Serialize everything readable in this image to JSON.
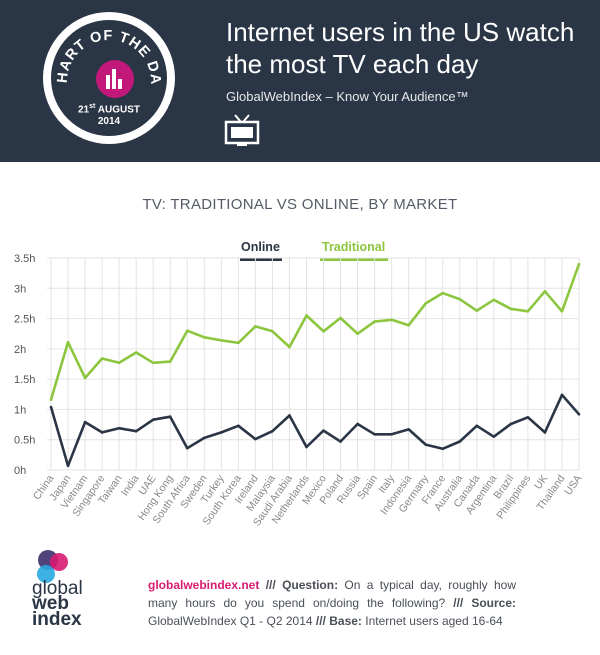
{
  "header": {
    "badge_top": "CHART OF THE DAY",
    "badge_date_day": "21",
    "badge_date_suffix": "st",
    "badge_date_month": "AUGUST",
    "badge_date_year": "2014",
    "title": "Internet users in the US watch the most TV each day",
    "subtitle": "GlobalWebIndex – Know Your Audience™",
    "icon": "tv-icon"
  },
  "colors": {
    "header_bg": "#2a3545",
    "online": "#2a3545",
    "traditional": "#8cc63f",
    "accent": "#d81b72"
  },
  "chart_data": {
    "type": "line",
    "title": "TV: TRADITIONAL VS ONLINE, BY MARKET",
    "legend_placement": "top-center",
    "grid": true,
    "ylim": [
      0,
      3.5
    ],
    "yticks": [
      "0h",
      "0.5h",
      "1h",
      "1.5h",
      "2h",
      "2.5h",
      "3h",
      "3.5h"
    ],
    "categories": [
      "China",
      "Japan",
      "Vietnam",
      "Singapore",
      "Taiwan",
      "India",
      "UAE",
      "Hong Kong",
      "South Africa",
      "Sweden",
      "Turkey",
      "South Korea",
      "Ireland",
      "Malaysia",
      "Saudi Arabia",
      "Netherlands",
      "Mexico",
      "Poland",
      "Russia",
      "Spain",
      "Italy",
      "Indonesia",
      "Germany",
      "France",
      "Australia",
      "Canada",
      "Argentina",
      "Brazil",
      "Philippines",
      "UK",
      "Thailand",
      "USA"
    ],
    "series": [
      {
        "name": "Online",
        "values": [
          1.04,
          0.07,
          0.79,
          0.62,
          0.69,
          0.64,
          0.83,
          0.88,
          0.36,
          0.53,
          0.62,
          0.73,
          0.51,
          0.64,
          0.9,
          0.38,
          0.65,
          0.47,
          0.76,
          0.59,
          0.59,
          0.67,
          0.42,
          0.35,
          0.47,
          0.73,
          0.55,
          0.76,
          0.87,
          0.62,
          1.24,
          0.92
        ]
      },
      {
        "name": "Traditional",
        "values": [
          1.16,
          2.11,
          1.52,
          1.84,
          1.77,
          1.94,
          1.77,
          1.79,
          2.3,
          2.19,
          2.14,
          2.1,
          2.37,
          2.29,
          2.03,
          2.55,
          2.29,
          2.51,
          2.25,
          2.45,
          2.48,
          2.39,
          2.75,
          2.92,
          2.82,
          2.63,
          2.81,
          2.66,
          2.62,
          2.95,
          2.62,
          3.4
        ]
      }
    ]
  },
  "footer": {
    "logo_line1": "global",
    "logo_line2": "web",
    "logo_line3": "index",
    "site": "globalwebindex.net",
    "sep1": " /// ",
    "question_label": "Question:",
    "question_text": " On a typical day, roughly how many hours do you spend on/doing the following? ",
    "sep2": " /// ",
    "source_label": "Source:",
    "source_text": " GlobalWebIndex Q1 - Q2 2014 ",
    "sep3": "/// ",
    "base_label": "Base:",
    "base_text": " Internet users aged 16-64"
  }
}
